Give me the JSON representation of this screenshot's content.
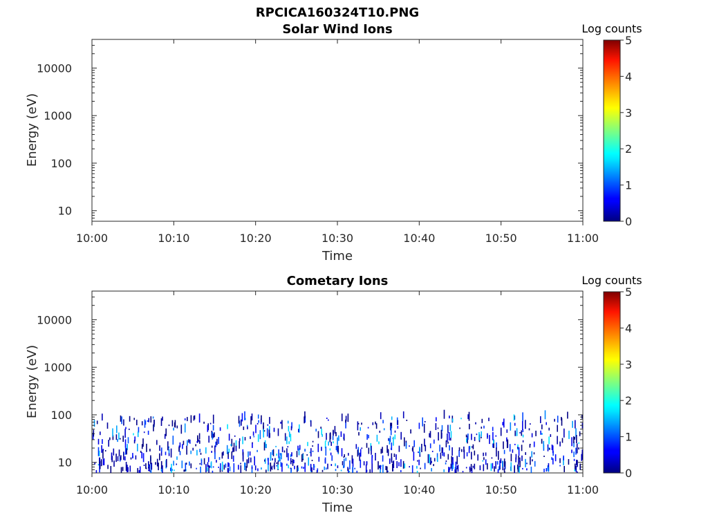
{
  "figure": {
    "filename_title": "RPCICA160324T10.PNG"
  },
  "chart_data": [
    {
      "type": "heatmap",
      "title": "Solar Wind Ions",
      "xlabel": "Time",
      "ylabel": "Energy (eV)",
      "x_ticks": [
        "10:00",
        "10:10",
        "10:20",
        "10:30",
        "10:40",
        "10:50",
        "11:00"
      ],
      "xlim": [
        "10:00",
        "11:00"
      ],
      "y_scale": "log",
      "y_ticks": [
        10,
        100,
        1000,
        10000
      ],
      "y_tick_labels": [
        "10",
        "100",
        "1000",
        "10000"
      ],
      "ylim": [
        6,
        40000
      ],
      "colorbar": {
        "label": "Log counts",
        "ticks": [
          "0",
          "1",
          "2",
          "3",
          "4",
          "5"
        ],
        "range": [
          0,
          5
        ],
        "colormap": "jet"
      },
      "data_description_values": [],
      "cells": []
    },
    {
      "type": "heatmap",
      "title": "Cometary Ions",
      "xlabel": "Time",
      "ylabel": "Energy (eV)",
      "x_ticks": [
        "10:00",
        "10:10",
        "10:20",
        "10:30",
        "10:40",
        "10:50",
        "11:00"
      ],
      "xlim": [
        "10:00",
        "11:00"
      ],
      "y_scale": "log",
      "y_ticks": [
        10,
        100,
        1000,
        10000
      ],
      "y_tick_labels": [
        "10",
        "100",
        "1000",
        "10000"
      ],
      "ylim": [
        6,
        40000
      ],
      "colorbar": {
        "label": "Log counts",
        "ticks": [
          "0",
          "1",
          "2",
          "3",
          "4",
          "5"
        ],
        "range": [
          0,
          5
        ],
        "colormap": "jet"
      },
      "signal_energy_range_eV": [
        6,
        85
      ],
      "signal_time_range": [
        "10:00",
        "11:00"
      ],
      "typical_log_counts": [
        0,
        1.8
      ],
      "cells_seed": 20160324,
      "cells_count": 900
    }
  ]
}
